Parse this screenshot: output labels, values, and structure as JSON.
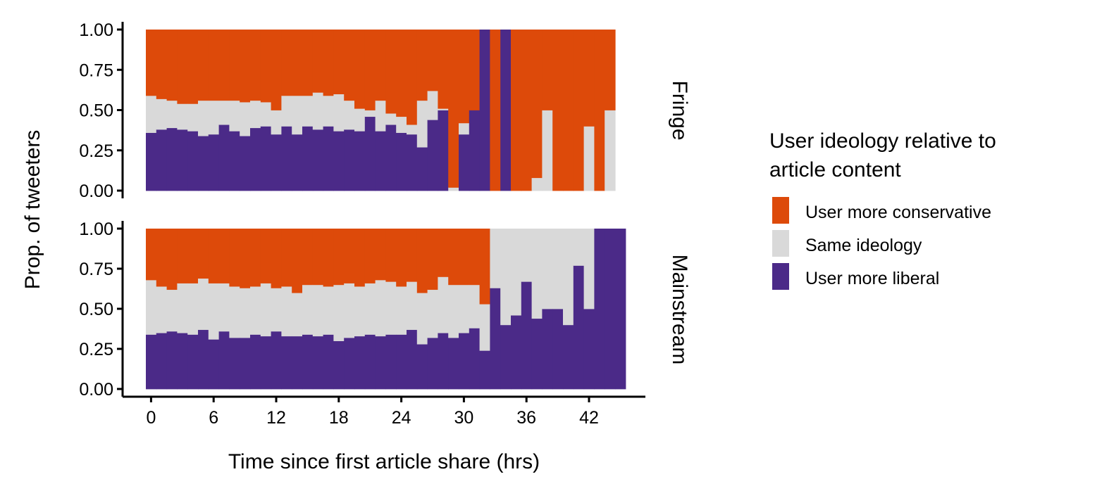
{
  "chart_data": {
    "type": "bar",
    "stacked": true,
    "orientation": "vertical",
    "xlabel": "Time since first article share (hrs)",
    "ylabel": "Prop. of tweeters",
    "x_ticks": [
      0,
      6,
      12,
      18,
      24,
      30,
      36,
      42
    ],
    "y_ticks": [
      "0.00",
      "0.25",
      "0.50",
      "0.75",
      "1.00"
    ],
    "xlim": [
      -1,
      47
    ],
    "ylim": [
      0,
      1
    ],
    "grid": false,
    "legend": {
      "title": "User ideology relative to article content",
      "title_lines": [
        "User ideology relative to",
        "article content"
      ],
      "placement": "right",
      "entries": [
        {
          "label": "User more conservative",
          "color": "#DD4A0A"
        },
        {
          "label": "Same ideology",
          "color": "#D9D9D9"
        },
        {
          "label": "User more liberal",
          "color": "#4B2A88"
        }
      ]
    },
    "colors": {
      "conservative": "#DD4A0A",
      "same": "#D9D9D9",
      "liberal": "#4B2A88",
      "axis": "#000000"
    },
    "stack_order": [
      "liberal",
      "same",
      "conservative"
    ],
    "hours": [
      0,
      1,
      2,
      3,
      4,
      5,
      6,
      7,
      8,
      9,
      10,
      11,
      12,
      13,
      14,
      15,
      16,
      17,
      18,
      19,
      20,
      21,
      22,
      23,
      24,
      25,
      26,
      27,
      28,
      29,
      30,
      31,
      32,
      33,
      34,
      35,
      36,
      37,
      38,
      39,
      40,
      41,
      42,
      43,
      44,
      45
    ],
    "panels": [
      {
        "strip_label": "Fringe",
        "series": [
          {
            "name": "User more liberal",
            "key": "liberal",
            "values": [
              0.36,
              0.38,
              0.39,
              0.38,
              0.37,
              0.34,
              0.35,
              0.41,
              0.37,
              0.34,
              0.39,
              0.4,
              0.35,
              0.4,
              0.35,
              0.4,
              0.38,
              0.4,
              0.37,
              0.38,
              0.37,
              0.46,
              0.37,
              0.41,
              0.36,
              0.35,
              0.27,
              0.44,
              0.5,
              0.0,
              0.35,
              0.5,
              1.0,
              0.0,
              1.0,
              0.0,
              0.0,
              0.0,
              0.0,
              0.0,
              0.0,
              0.0,
              0.0,
              0.0,
              0.0,
              null
            ]
          },
          {
            "name": "Same ideology",
            "key": "same",
            "values": [
              0.23,
              0.19,
              0.17,
              0.16,
              0.17,
              0.22,
              0.21,
              0.15,
              0.19,
              0.21,
              0.17,
              0.15,
              0.15,
              0.19,
              0.24,
              0.19,
              0.23,
              0.19,
              0.23,
              0.18,
              0.14,
              0.04,
              0.19,
              0.07,
              0.1,
              0.06,
              0.29,
              0.18,
              0.01,
              0.02,
              0.07,
              0.0,
              0.0,
              0.0,
              0.0,
              0.0,
              0.0,
              0.08,
              0.5,
              0.0,
              0.0,
              0.0,
              0.4,
              0.0,
              0.5,
              null
            ]
          },
          {
            "name": "User more conservative",
            "key": "conservative",
            "values": [
              0.41,
              0.43,
              0.44,
              0.46,
              0.46,
              0.44,
              0.44,
              0.44,
              0.44,
              0.45,
              0.44,
              0.45,
              0.5,
              0.41,
              0.41,
              0.41,
              0.39,
              0.41,
              0.4,
              0.44,
              0.49,
              0.5,
              0.44,
              0.52,
              0.54,
              0.59,
              0.44,
              0.38,
              0.49,
              0.98,
              0.58,
              0.5,
              0.0,
              1.0,
              0.0,
              1.0,
              1.0,
              0.92,
              0.5,
              1.0,
              1.0,
              1.0,
              0.6,
              1.0,
              0.5,
              null
            ]
          }
        ]
      },
      {
        "strip_label": "Mainstream",
        "series": [
          {
            "name": "User more liberal",
            "key": "liberal",
            "values": [
              0.34,
              0.35,
              0.36,
              0.35,
              0.34,
              0.37,
              0.31,
              0.36,
              0.32,
              0.32,
              0.34,
              0.33,
              0.36,
              0.33,
              0.33,
              0.34,
              0.33,
              0.34,
              0.3,
              0.32,
              0.33,
              0.34,
              0.33,
              0.34,
              0.34,
              0.37,
              0.28,
              0.32,
              0.35,
              0.32,
              0.35,
              0.38,
              0.24,
              0.63,
              0.4,
              0.46,
              0.67,
              0.44,
              0.5,
              0.5,
              0.4,
              0.77,
              0.5,
              1.0,
              1.0,
              1.0
            ]
          },
          {
            "name": "Same ideology",
            "key": "same",
            "values": [
              0.34,
              0.29,
              0.26,
              0.31,
              0.32,
              0.32,
              0.35,
              0.3,
              0.32,
              0.31,
              0.3,
              0.33,
              0.27,
              0.31,
              0.27,
              0.31,
              0.32,
              0.3,
              0.35,
              0.34,
              0.31,
              0.32,
              0.35,
              0.33,
              0.3,
              0.3,
              0.32,
              0.3,
              0.35,
              0.33,
              0.3,
              0.27,
              0.29,
              0.37,
              0.6,
              0.54,
              0.33,
              0.56,
              0.5,
              0.5,
              0.6,
              0.23,
              0.5,
              0.0,
              0.0,
              0.0
            ]
          },
          {
            "name": "User more conservative",
            "key": "conservative",
            "values": [
              0.32,
              0.36,
              0.38,
              0.34,
              0.34,
              0.31,
              0.34,
              0.34,
              0.36,
              0.37,
              0.36,
              0.34,
              0.37,
              0.36,
              0.4,
              0.35,
              0.35,
              0.36,
              0.35,
              0.34,
              0.36,
              0.34,
              0.32,
              0.33,
              0.36,
              0.33,
              0.4,
              0.38,
              0.3,
              0.35,
              0.35,
              0.35,
              0.47,
              0.0,
              0.0,
              0.0,
              0.0,
              0.0,
              0.0,
              0.0,
              0.0,
              0.0,
              0.0,
              0.0,
              0.0,
              0.0
            ]
          }
        ]
      }
    ]
  }
}
